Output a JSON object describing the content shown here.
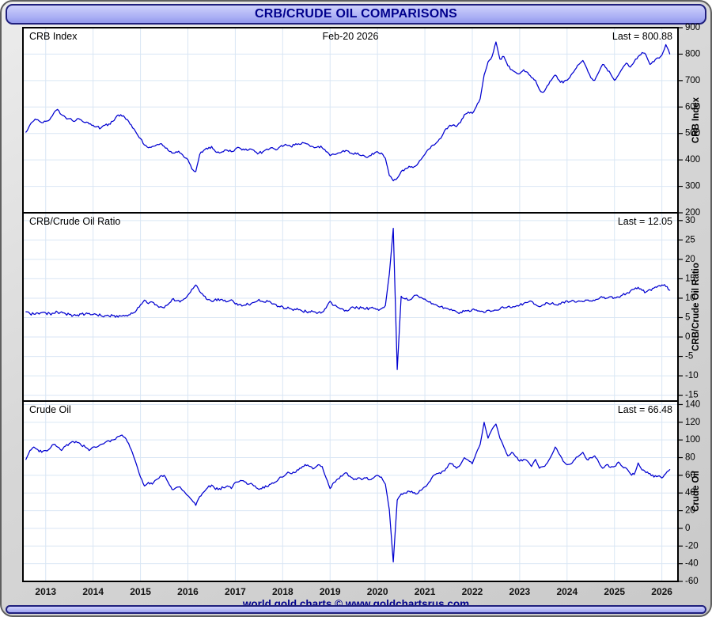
{
  "header": {
    "title": "CRB/CRUDE OIL COMPARISONS"
  },
  "footer": {
    "credit": "world gold charts © www.goldchartsrus.com"
  },
  "colors": {
    "accent_lavender": "#a8adf4",
    "navy_text": "#00008c",
    "line_blue": "#0000d0",
    "grid_blue": "#d9e6f4",
    "panel_bg": "#ffffff",
    "frame_gray": "#d2d2d2"
  },
  "chart_data": {
    "type": "line",
    "title": "CRB/CRUDE OIL COMPARISONS",
    "grid": true,
    "legend_position": "none",
    "line_color": "#0000d0",
    "grid_color": "#d9e6f4",
    "x_axis": {
      "x_start": 2012.5833,
      "x_step_years": 0.0833333,
      "xlim": [
        2012.52,
        2026.34
      ],
      "ticks": [
        2013,
        2014,
        2015,
        2016,
        2017,
        2018,
        2019,
        2020,
        2021,
        2022,
        2023,
        2024,
        2025,
        2026
      ]
    },
    "panels": [
      {
        "title": "CRB Index",
        "date_label": "Feb-20 2026",
        "last_label": "Last = 800.88",
        "last_value": 800.88,
        "y_axis_label": "CRB Index",
        "ylim": [
          200,
          900
        ],
        "y_ticks": [
          900,
          800,
          700,
          600,
          500,
          400,
          300,
          200
        ],
        "values": [
          505,
          532,
          548,
          552,
          541,
          546,
          552,
          576,
          591,
          571,
          561,
          556,
          546,
          556,
          551,
          541,
          536,
          531,
          526,
          521,
          531,
          536,
          546,
          566,
          571,
          561,
          546,
          521,
          501,
          481,
          456,
          446,
          451,
          456,
          461,
          451,
          436,
          426,
          431,
          426,
          411,
          401,
          366,
          356,
          421,
          436,
          441,
          451,
          431,
          426,
          431,
          436,
          431,
          441,
          446,
          441,
          436,
          441,
          431,
          426,
          431,
          441,
          446,
          441,
          446,
          451,
          456,
          451,
          456,
          461,
          466,
          461,
          451,
          446,
          451,
          446,
          431,
          416,
          421,
          426,
          431,
          436,
          426,
          421,
          426,
          416,
          411,
          416,
          421,
          431,
          426,
          406,
          341,
          321,
          331,
          356,
          366,
          376,
          371,
          381,
          401,
          421,
          441,
          456,
          466,
          481,
          511,
          526,
          531,
          526,
          541,
          571,
          581,
          576,
          601,
          631,
          721,
          771,
          791,
          846,
          781,
          791,
          756,
          741,
          731,
          726,
          741,
          731,
          711,
          701,
          666,
          656,
          681,
          701,
          721,
          701,
          691,
          701,
          721,
          741,
          761,
          776,
          746,
          711,
          701,
          731,
          761,
          746,
          726,
          701,
          721,
          746,
          766,
          751,
          771,
          791,
          806,
          796,
          761,
          771,
          786,
          796,
          836,
          800.88
        ]
      },
      {
        "title": "CRB/Crude Oil Ratio",
        "last_label": "Last = 12.05",
        "last_value": 12.05,
        "y_axis_label": "CRB/Crude Oil Ratio",
        "ylim": [
          -16.5,
          32
        ],
        "y_ticks": [
          30,
          25,
          20,
          15,
          10,
          5,
          0,
          -5,
          -10,
          -15
        ],
        "values": [
          6.5,
          6.0,
          5.9,
          6.2,
          6.3,
          6.2,
          6.1,
          6.1,
          6.4,
          6.5,
          6.0,
          5.8,
          5.6,
          5.7,
          5.9,
          5.9,
          6.1,
          5.8,
          5.7,
          5.5,
          5.5,
          5.4,
          5.5,
          5.5,
          5.4,
          5.4,
          5.7,
          6.1,
          6.9,
          8.3,
          9.5,
          8.6,
          9.0,
          8.3,
          7.8,
          7.5,
          8.4,
          9.7,
          9.3,
          9.0,
          9.8,
          10.8,
          12.3,
          13.4,
          11.7,
          10.6,
          9.6,
          9.2,
          9.8,
          9.4,
          9.3,
          9.1,
          9.6,
          8.5,
          8.4,
          8.1,
          8.7,
          8.6,
          9.0,
          9.7,
          9.1,
          9.4,
          8.9,
          8.5,
          7.9,
          7.8,
          7.3,
          7.3,
          7.2,
          7.0,
          6.6,
          6.5,
          6.4,
          6.5,
          6.3,
          6.4,
          7.5,
          9.2,
          8.1,
          7.6,
          7.3,
          6.9,
          7.2,
          7.6,
          7.5,
          7.5,
          7.2,
          7.5,
          7.4,
          7.2,
          7.3,
          8.1,
          16.2,
          28.0,
          -8.4,
          10.5,
          9.8,
          9.5,
          10.3,
          10.8,
          10.2,
          9.8,
          9.0,
          8.6,
          8.2,
          7.8,
          7.5,
          7.2,
          6.8,
          6.5,
          6.4,
          6.6,
          6.9,
          7.1,
          7.0,
          6.6,
          6.3,
          6.9,
          6.7,
          6.9,
          7.2,
          7.5,
          7.8,
          7.6,
          7.9,
          8.2,
          8.6,
          8.9,
          9.2,
          8.4,
          7.8,
          8.3,
          8.8,
          8.6,
          8.3,
          8.6,
          9.0,
          9.3,
          9.2,
          9.0,
          9.3,
          9.1,
          9.5,
          9.3,
          9.4,
          9.8,
          10.2,
          10.0,
          10.4,
          10.1,
          10.3,
          10.8,
          11.2,
          11.8,
          12.3,
          12.8,
          12.0,
          11.6,
          12.2,
          12.6,
          13.1,
          13.4,
          13.0,
          12.05
        ]
      },
      {
        "title": "Crude Oil",
        "last_label": "Last = 66.48",
        "last_value": 66.48,
        "y_axis_label": "Crude Oil",
        "ylim": [
          -60,
          144
        ],
        "y_ticks": [
          140,
          120,
          100,
          80,
          60,
          40,
          20,
          0,
          -20,
          -40,
          -60
        ],
        "values": [
          78,
          88,
          92,
          89,
          86,
          88,
          90,
          95,
          92,
          88,
          93,
          96,
          98,
          97,
          94,
          92,
          88,
          92,
          92,
          95,
          97,
          99,
          100,
          103,
          105,
          103,
          96,
          85,
          72,
          58,
          48,
          52,
          50,
          55,
          59,
          60,
          52,
          44,
          46,
          47,
          42,
          37,
          32,
          26,
          36,
          41,
          46,
          49,
          44,
          45,
          46,
          48,
          45,
          52,
          53,
          54,
          50,
          51,
          48,
          44,
          47,
          47,
          50,
          52,
          56,
          58,
          62,
          62,
          63,
          66,
          70,
          71,
          70,
          68,
          72,
          70,
          57,
          45,
          52,
          56,
          59,
          63,
          59,
          55,
          57,
          55,
          57,
          55,
          57,
          60,
          58,
          50,
          21,
          -38,
          32,
          39,
          40,
          42,
          40,
          39,
          43,
          47,
          52,
          59,
          62,
          62,
          65,
          72,
          73,
          68,
          72,
          80,
          77,
          73,
          85,
          95,
          120,
          102,
          112,
          118,
          102,
          92,
          82,
          86,
          81,
          76,
          78,
          76,
          70,
          78,
          68,
          70,
          74,
          82,
          92,
          84,
          76,
          72,
          73,
          78,
          82,
          86,
          78,
          80,
          82,
          75,
          68,
          72,
          69,
          70,
          75,
          70,
          68,
          62,
          61,
          74,
          66,
          63,
          62,
          58,
          59,
          57,
          62,
          66.48
        ]
      }
    ]
  }
}
